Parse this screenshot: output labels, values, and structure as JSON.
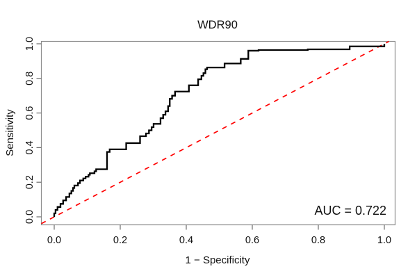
{
  "chart_data": {
    "type": "line",
    "subtype": "roc_step_curve",
    "title": "WDR90",
    "xlabel": "1 − Specificity",
    "ylabel": "Sensitivity",
    "auc_label": "AUC = 0.722",
    "auc": 0.722,
    "xlim": [
      0,
      1
    ],
    "ylim": [
      0,
      1
    ],
    "x_ticks": [
      "0.0",
      "0.2",
      "0.4",
      "0.6",
      "0.8",
      "1.0"
    ],
    "y_ticks": [
      "0.0",
      "0.2",
      "0.4",
      "0.6",
      "0.8",
      "1.0"
    ],
    "grid": false,
    "legend": "none",
    "annotations": [
      {
        "text": "AUC = 0.722",
        "position": "bottom-right"
      }
    ],
    "colors": {
      "curve": "#000000",
      "reference_line": "#ff0000",
      "frame": "#8b8b8b",
      "tick": "#6e6e6e",
      "text": "#111111",
      "background": "#ffffff"
    },
    "series": [
      {
        "name": "ROC curve",
        "color": "#000000",
        "line_style": "solid",
        "draw": "step",
        "points": [
          [
            0.0,
            0.02
          ],
          [
            0.004,
            0.04
          ],
          [
            0.01,
            0.057
          ],
          [
            0.019,
            0.075
          ],
          [
            0.027,
            0.095
          ],
          [
            0.036,
            0.115
          ],
          [
            0.046,
            0.135
          ],
          [
            0.052,
            0.15
          ],
          [
            0.057,
            0.167
          ],
          [
            0.061,
            0.181
          ],
          [
            0.072,
            0.195
          ],
          [
            0.078,
            0.21
          ],
          [
            0.088,
            0.222
          ],
          [
            0.095,
            0.232
          ],
          [
            0.104,
            0.243
          ],
          [
            0.108,
            0.252
          ],
          [
            0.122,
            0.263
          ],
          [
            0.127,
            0.275
          ],
          [
            0.16,
            0.375
          ],
          [
            0.168,
            0.39
          ],
          [
            0.218,
            0.426
          ],
          [
            0.26,
            0.466
          ],
          [
            0.278,
            0.482
          ],
          [
            0.287,
            0.5
          ],
          [
            0.295,
            0.518
          ],
          [
            0.301,
            0.537
          ],
          [
            0.322,
            0.57
          ],
          [
            0.33,
            0.59
          ],
          [
            0.337,
            0.61
          ],
          [
            0.345,
            0.64
          ],
          [
            0.35,
            0.682
          ],
          [
            0.357,
            0.7
          ],
          [
            0.366,
            0.724
          ],
          [
            0.408,
            0.76
          ],
          [
            0.436,
            0.795
          ],
          [
            0.446,
            0.815
          ],
          [
            0.452,
            0.83
          ],
          [
            0.458,
            0.853
          ],
          [
            0.463,
            0.863
          ],
          [
            0.516,
            0.886
          ],
          [
            0.565,
            0.913
          ],
          [
            0.588,
            0.96
          ],
          [
            0.619,
            0.964
          ],
          [
            0.768,
            0.968
          ],
          [
            0.895,
            0.985
          ],
          [
            1.0,
            1.0
          ]
        ]
      },
      {
        "name": "Chance diagonal",
        "color": "#ff0000",
        "line_style": "dashed",
        "draw": "line",
        "points": [
          [
            0,
            0
          ],
          [
            1,
            1
          ]
        ]
      }
    ]
  }
}
